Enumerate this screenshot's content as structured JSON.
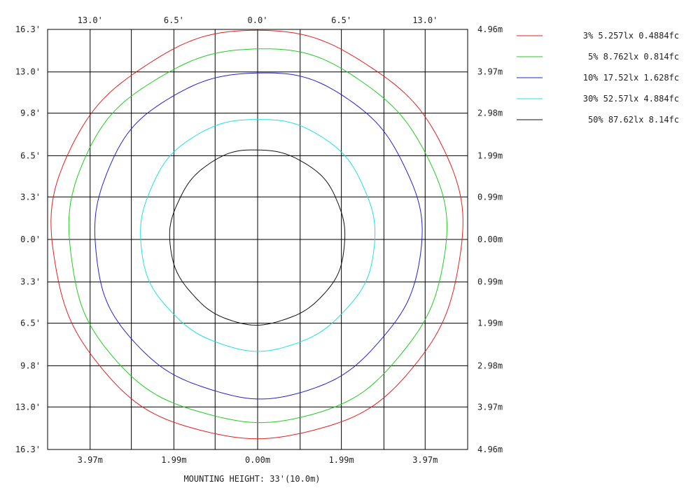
{
  "chart_data": {
    "type": "line",
    "title": "",
    "xlabel": "MOUNTING HEIGHT: 33'(10.0m)",
    "ylabel": "",
    "x_range_ft": [
      -16.3,
      16.3
    ],
    "y_range_ft": [
      -16.3,
      16.3
    ],
    "grid": true,
    "legend_position": "top-right",
    "top_tick_labels": [
      "13.0'",
      "6.5'",
      "0.0'",
      "6.5'",
      "13.0'"
    ],
    "top_tick_values_ft": [
      -13.0,
      -6.5,
      0.0,
      6.5,
      13.0
    ],
    "bottom_tick_labels": [
      "3.97m",
      "1.99m",
      "0.00m",
      "1.99m",
      "3.97m"
    ],
    "left_tick_labels": [
      "16.3'",
      "13.0'",
      "9.8'",
      "6.5'",
      "3.3'",
      "0.0'",
      "3.3'",
      "6.5'",
      "9.8'",
      "13.0'",
      "16.3'"
    ],
    "right_tick_labels": [
      "4.96m",
      "3.97m",
      "2.98m",
      "1.99m",
      "0.99m",
      "0.00m",
      "0.99m",
      "1.99m",
      "2.98m",
      "3.97m",
      "4.96m"
    ],
    "y_tick_values_ft": [
      16.3,
      13.0,
      9.8,
      6.5,
      3.3,
      0.0,
      -3.3,
      -6.5,
      -9.8,
      -13.0,
      -16.3
    ],
    "series": [
      {
        "name": "3% 5.257lx 0.4884fc",
        "color": "#e02020",
        "x_extent_ft": [
          -16.0,
          15.9
        ],
        "y_extent_ft": [
          -15.5,
          16.2
        ]
      },
      {
        "name": "5% 8.762lx 0.814fc",
        "color": "#22cc22",
        "x_extent_ft": [
          -14.7,
          14.6
        ],
        "y_extent_ft": [
          -14.2,
          14.8
        ]
      },
      {
        "name": "10% 17.52lx 1.628fc",
        "color": "#2222c8",
        "x_extent_ft": [
          -12.7,
          12.7
        ],
        "y_extent_ft": [
          -12.3,
          13.0
        ]
      },
      {
        "name": "30% 52.57lx 4.884fc",
        "color": "#22e0e0",
        "x_extent_ft": [
          -9.1,
          9.1
        ],
        "y_extent_ft": [
          -8.6,
          9.4
        ]
      },
      {
        "name": "50% 87.62lx 8.14fc",
        "color": "#111111",
        "x_extent_ft": [
          -6.8,
          6.8
        ],
        "y_extent_ft": [
          -6.6,
          7.0
        ]
      }
    ]
  }
}
